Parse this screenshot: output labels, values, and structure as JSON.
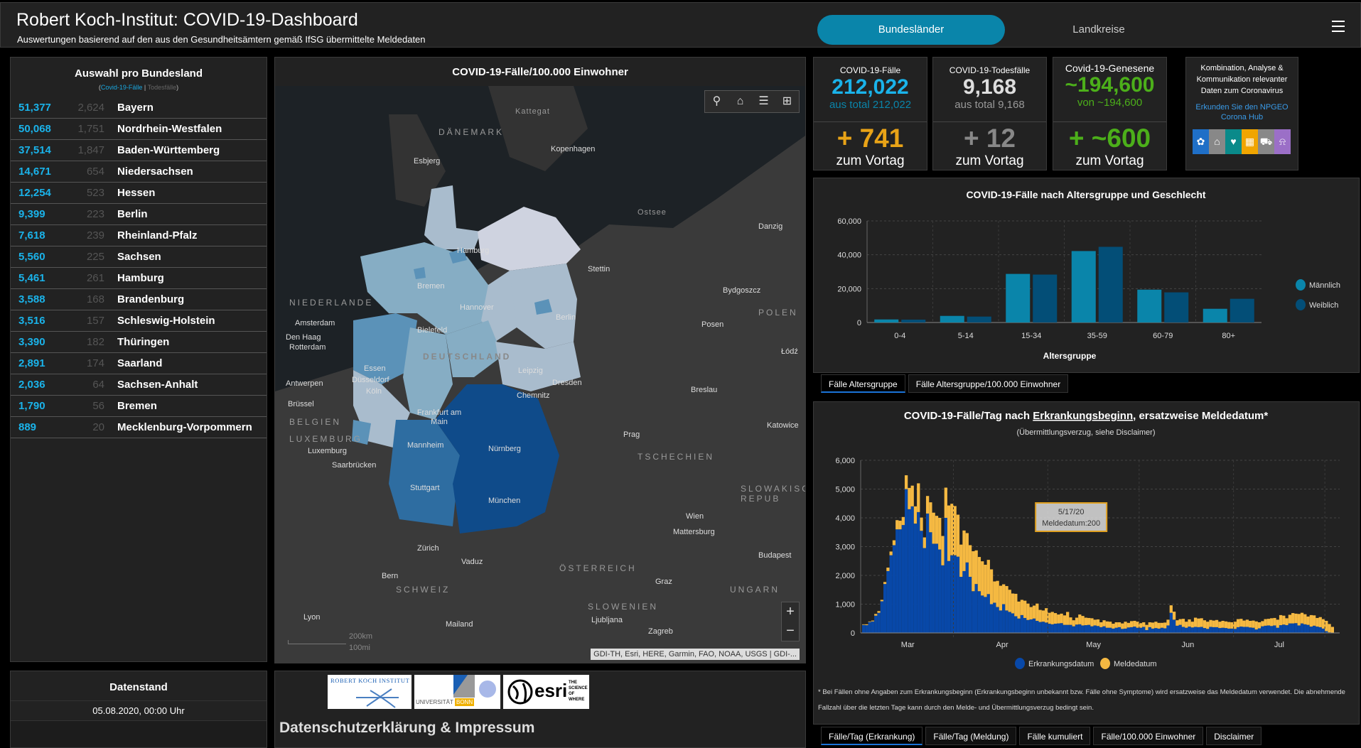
{
  "header": {
    "title": "Robert Koch-Institut: COVID-19-Dashboard",
    "subtitle": "Auswertungen basierend auf den aus den Gesundheitsämtern gemäß IfSG übermittelte Meldedaten",
    "nav": [
      {
        "label": "Bundesländer",
        "active": true
      },
      {
        "label": "Landkreise",
        "active": false
      }
    ],
    "menu_icon": "hamburger-menu-icon"
  },
  "state_list": {
    "title": "Auswahl pro Bundesland",
    "legend_open": "(",
    "legend_cases": "Covid-19-Fälle",
    "legend_sep": " | ",
    "legend_deaths": "Todesfälle",
    "legend_close": ")",
    "rows": [
      {
        "cases": "51,377",
        "deaths": "2,624",
        "name": "Bayern"
      },
      {
        "cases": "50,068",
        "deaths": "1,751",
        "name": "Nordrhein-Westfalen"
      },
      {
        "cases": "37,514",
        "deaths": "1,847",
        "name": "Baden-Württemberg"
      },
      {
        "cases": "14,671",
        "deaths": "654",
        "name": "Niedersachsen"
      },
      {
        "cases": "12,254",
        "deaths": "523",
        "name": "Hessen"
      },
      {
        "cases": "9,399",
        "deaths": "223",
        "name": "Berlin"
      },
      {
        "cases": "7,618",
        "deaths": "239",
        "name": "Rheinland-Pfalz"
      },
      {
        "cases": "5,560",
        "deaths": "225",
        "name": "Sachsen"
      },
      {
        "cases": "5,461",
        "deaths": "261",
        "name": "Hamburg"
      },
      {
        "cases": "3,588",
        "deaths": "168",
        "name": "Brandenburg"
      },
      {
        "cases": "3,516",
        "deaths": "157",
        "name": "Schleswig-Holstein"
      },
      {
        "cases": "3,390",
        "deaths": "182",
        "name": "Thüringen"
      },
      {
        "cases": "2,891",
        "deaths": "174",
        "name": "Saarland"
      },
      {
        "cases": "2,036",
        "deaths": "64",
        "name": "Sachsen-Anhalt"
      },
      {
        "cases": "1,790",
        "deaths": "56",
        "name": "Bremen"
      },
      {
        "cases": "889",
        "deaths": "20",
        "name": "Mecklenburg-Vorpommern"
      }
    ]
  },
  "datenstand": {
    "title": "Datenstand",
    "value": "05.08.2020, 00:00 Uhr"
  },
  "map": {
    "title": "COVID-19-Fälle/100.000 Einwohner",
    "tools": [
      "search-icon",
      "home-icon",
      "legend-list-icon",
      "basemap-gallery-icon"
    ],
    "zoom_in": "+",
    "zoom_out": "−",
    "attribution": "GDI-TH, Esri, HERE, Garmin, FAO, NOAA, USGS | GDI-...",
    "scale_km": "200km",
    "scale_mi": "100mi",
    "labels": {
      "countries": [
        "DÄNEMARK",
        "NIEDERLANDE",
        "BELGIEN",
        "LUXEMBURG",
        "POLEN",
        "TSCHECHIEN",
        "ÖSTERREICH",
        "SCHWEIZ",
        "SLOWENIEN",
        "UNGARN",
        "SLOWAKISCHE REPUB",
        "DEUTSCHLAND"
      ],
      "waters": [
        "Kattegat",
        "Ostsee"
      ],
      "cities": [
        "Kopenhagen",
        "Esbjerg",
        "Hamburg",
        "Bremen",
        "Stettin",
        "Danzig",
        "Bydgoszcz",
        "Amsterdam",
        "Den Haag",
        "Rotterdam",
        "Hannover",
        "Berlin",
        "Posen",
        "Bielefeld",
        "Łódź",
        "Essen",
        "Düsseldorf",
        "Antwerpen",
        "Leipzig",
        "Köln",
        "Dresden",
        "Chemnitz",
        "Breslau",
        "Brüssel",
        "Katowice",
        "Frankfurt am Main",
        "Prag",
        "Luxemburg",
        "Mannheim",
        "Nürnberg",
        "Saarbrücken",
        "Stuttgart",
        "München",
        "Wien",
        "Mattersburg",
        "Budapest",
        "Zürich",
        "Vaduz",
        "Graz",
        "Bern",
        "Ljubljana",
        "Lyon",
        "Zagreb",
        "Mailand"
      ]
    },
    "legend_colors": {
      "low": "#cfd3e0",
      "mid_low": "#a9bccd",
      "mid": "#86adc4",
      "mid_high": "#5b92b8",
      "high": "#2e6da1",
      "highest": "#0f4b8a"
    }
  },
  "footer": {
    "logos": [
      "ROBERT KOCH INSTITUT",
      "UNIVERSITÄT",
      "BONN",
      "esri",
      "THE SCIENCE OF WHERE"
    ],
    "privacy_link": "Datenschutzerklärung & Impressum"
  },
  "kpis": {
    "cases": {
      "label": "COVID-19-Fälle",
      "value": "212,022",
      "sub": "aus total 212,022",
      "delta": "+ 741",
      "delta_label": "zum Vortag",
      "color": "#1ab3ea",
      "delta_color": "#e8a317"
    },
    "deaths": {
      "label": "COVID-19-Todesfälle",
      "value": "9,168",
      "sub": "aus total 9,168",
      "delta": "+ 12",
      "delta_label": "zum Vortag",
      "color": "#dddddd",
      "delta_color": "#888888"
    },
    "recovered": {
      "label": "Covid-19-Genesene",
      "value": "~194,600",
      "sub": "von ~194,600",
      "delta": "+ ~600",
      "delta_label": "zum Vortag",
      "color": "#4caf1a",
      "delta_color": "#4caf1a"
    }
  },
  "hub": {
    "title": "Kombination, Analyse & Kommunikation relevanter Daten zum Coronavirus",
    "link": "Erkunden Sie den NPGEO Corona Hub",
    "icons": [
      {
        "name": "plant-hand-icon",
        "glyph": "✿",
        "color": "#1f6fc7"
      },
      {
        "name": "map-pin-houses-icon",
        "glyph": "⌂",
        "color": "#888888"
      },
      {
        "name": "heart-pulse-icon",
        "glyph": "♥",
        "color": "#0a8a8a"
      },
      {
        "name": "land-parcel-icon",
        "glyph": "▦",
        "color": "#f0a500"
      },
      {
        "name": "cars-icon",
        "glyph": "⛟",
        "color": "#888888"
      },
      {
        "name": "bell-tower-icon",
        "glyph": "⍾",
        "color": "#9b6fc7"
      }
    ]
  },
  "age_tabs": [
    {
      "label": "Fälle Altersgruppe",
      "active": true
    },
    {
      "label": "Fälle Altersgruppe/100.000 Einwohner",
      "active": false
    }
  ],
  "time_tabs": [
    {
      "label": "Fälle/Tag (Erkrankung)",
      "active": true
    },
    {
      "label": "Fälle/Tag (Meldung)",
      "active": false
    },
    {
      "label": "Fälle kumuliert",
      "active": false
    },
    {
      "label": "Fälle/100.000 Einwohner",
      "active": false
    },
    {
      "label": "Disclaimer",
      "active": false
    }
  ],
  "time_chart_meta": {
    "subtitle": "(Übermittlungsverzug, siehe Disclaimer)",
    "title_pre": "COVID-19-Fälle/Tag nach ",
    "title_link": "Erkrankungsbeginn",
    "title_post": ", ersatzweise Meldedatum*",
    "tooltip_date": "5/17/20",
    "tooltip_value": "Meldedatum:200",
    "footnote": "* Bei Fällen ohne Angaben zum Erkrankungsbeginn (Erkrankungsbeginn unbekannt bzw. Fälle ohne Symptome) wird ersatzweise das Meldedatum verwendet. Die abnehmende Fallzahl über die letzten Tage kann durch den Melde- und Übermittlungsverzug bedingt sein."
  },
  "chart_data": [
    {
      "type": "bar",
      "title": "COVID-19-Fälle nach Altersgruppe und Geschlecht",
      "xlabel": "Altersgruppe",
      "ylabel": "",
      "categories": [
        "0-4",
        "5-14",
        "15-34",
        "35-59",
        "60-79",
        "80+"
      ],
      "series": [
        {
          "name": "Männlich",
          "color": "#0a85aa",
          "values": [
            1800,
            3900,
            28700,
            42200,
            19400,
            8100
          ]
        },
        {
          "name": "Weiblich",
          "color": "#034e77",
          "values": [
            1700,
            3500,
            28300,
            44700,
            17800,
            14000
          ]
        }
      ],
      "ylim": [
        0,
        60000
      ],
      "yticks": [
        "0",
        "20,000",
        "40,000",
        "60,000"
      ],
      "grid": true,
      "legend": "right"
    },
    {
      "type": "bar",
      "stacked": true,
      "title": "COVID-19-Fälle/Tag nach Erkrankungsbeginn, ersatzweise Meldedatum*",
      "xlabel": "",
      "ylabel": "",
      "x_tick_labels": [
        "Mar",
        "Apr",
        "May",
        "Jun",
        "Jul"
      ],
      "yticks": [
        "0",
        "1,000",
        "2,000",
        "3,000",
        "4,000",
        "5,000",
        "6,000"
      ],
      "ylim": [
        0,
        6000
      ],
      "grid": true,
      "legend": "bottom",
      "x_start": "2020-02-15",
      "series": [
        {
          "name": "Erkrankungsdatum",
          "color": "#0848a8",
          "values": [
            280,
            270,
            380,
            400,
            600,
            700,
            1100,
            1700,
            2150,
            2700,
            3050,
            3600,
            3600,
            3750,
            5000,
            4300,
            4400,
            3800,
            4200,
            3550,
            2950,
            4150,
            3500,
            3100,
            3100,
            2900,
            2350,
            4000,
            2500,
            2700,
            2700,
            2650,
            1950,
            2150,
            2450,
            1950,
            1450,
            1700,
            1450,
            1300,
            1250,
            1350,
            1000,
            1050,
            900,
            780,
            1000,
            780,
            730,
            680,
            580,
            500,
            620,
            520,
            450,
            470,
            500,
            420,
            380,
            390,
            360,
            320,
            300,
            320,
            330,
            340,
            280,
            280,
            280,
            230,
            290,
            300,
            260,
            270,
            280,
            230,
            260,
            240,
            200,
            230,
            180,
            180,
            150,
            180,
            200,
            140,
            150,
            190,
            200,
            220,
            180,
            180,
            210,
            100,
            200,
            150,
            170,
            150,
            180,
            160,
            260,
            700,
            460,
            250,
            280,
            210,
            180,
            220,
            190,
            210,
            200,
            210,
            170,
            140,
            210,
            200,
            200,
            170,
            180,
            170,
            150,
            150,
            140,
            200,
            220,
            210,
            210,
            190,
            180,
            120,
            160,
            230,
            250,
            260,
            240,
            260,
            180,
            270,
            290,
            270,
            330,
            330,
            340,
            260,
            330,
            300,
            280,
            220,
            250,
            220,
            200,
            150,
            60,
            20,
            10
          ]
        },
        {
          "name": "Meldedatum",
          "color": "#f5b942",
          "values": [
            20,
            30,
            20,
            30,
            60,
            60,
            50,
            70,
            120,
            130,
            170,
            320,
            300,
            280,
            480,
            740,
            720,
            600,
            1000,
            460,
            370,
            610,
            1040,
            1080,
            970,
            1100,
            1020,
            1050,
            1930,
            1790,
            1710,
            1460,
            1120,
            1410,
            1020,
            1100,
            1390,
            1170,
            1190,
            1190,
            1120,
            1190,
            1210,
            740,
            910,
            860,
            690,
            850,
            770,
            690,
            780,
            590,
            530,
            600,
            570,
            430,
            450,
            600,
            420,
            390,
            500,
            380,
            430,
            370,
            310,
            330,
            330,
            450,
            260,
            210,
            240,
            340,
            330,
            260,
            240,
            280,
            200,
            230,
            170,
            210,
            220,
            210,
            170,
            190,
            170,
            190,
            240,
            160,
            210,
            200,
            210,
            160,
            160,
            180,
            170,
            210,
            220,
            200,
            170,
            200,
            200,
            260,
            280,
            190,
            200,
            280,
            210,
            250,
            200,
            320,
            300,
            300,
            270,
            250,
            240,
            230,
            250,
            220,
            240,
            230,
            230,
            220,
            250,
            280,
            270,
            220,
            250,
            230,
            250,
            280,
            210,
            180,
            230,
            230,
            270,
            260,
            280,
            350,
            310,
            240,
            300,
            360,
            330,
            400,
            370,
            350,
            290,
            400,
            360,
            300,
            350,
            330,
            360,
            290,
            200,
            320,
            400
          ]
        }
      ]
    }
  ]
}
